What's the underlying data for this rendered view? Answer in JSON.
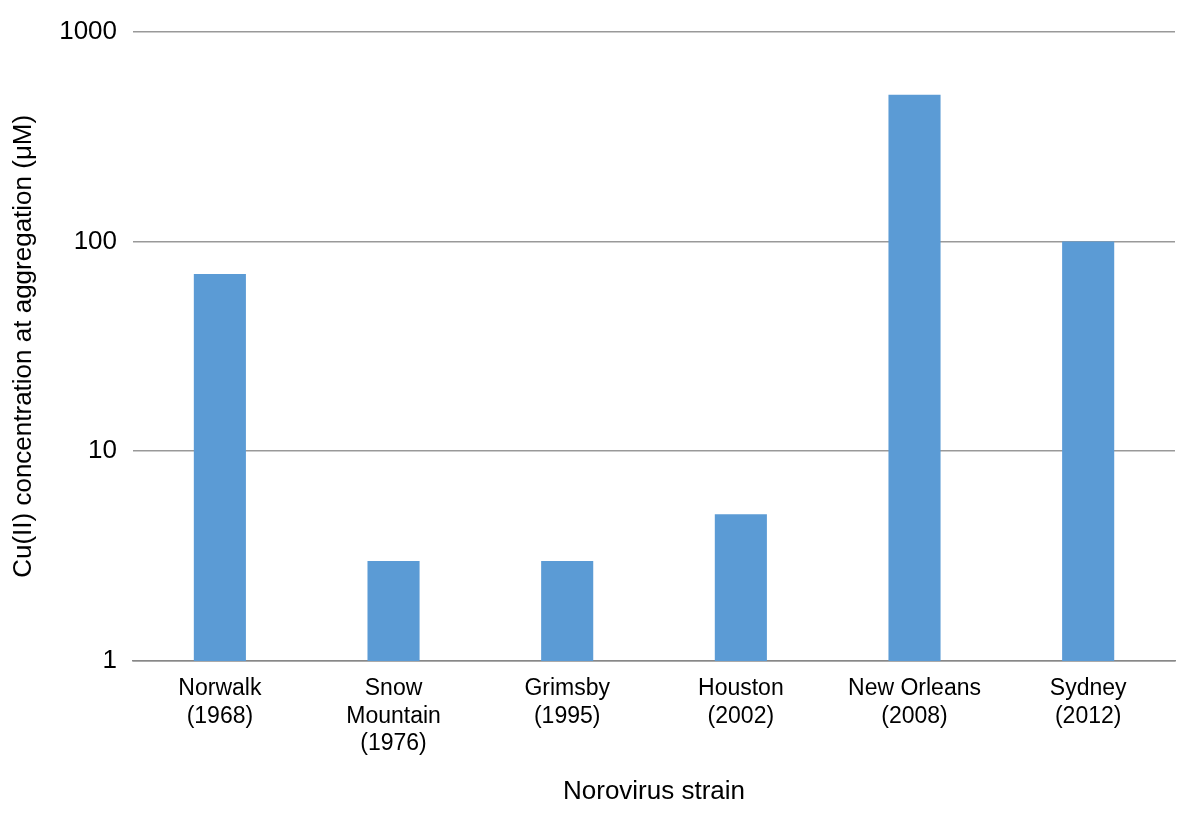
{
  "chart_data": {
    "type": "bar",
    "xlabel": "Norovirus strain",
    "ylabel": "Cu(II) concentration at aggregation (μM)",
    "categories": [
      "Norwalk (1968)",
      "Snow Mountain (1976)",
      "Grimsby (1995)",
      "Houston (2002)",
      "New Orleans (2008)",
      "Sydney (2012)"
    ],
    "values": [
      70,
      3,
      3,
      5,
      500,
      100
    ],
    "color": "#5b9bd5",
    "log": "y",
    "ylim": [
      1,
      1000
    ],
    "yticks": [
      1,
      10,
      100,
      1000
    ],
    "grid": "y",
    "legend": false
  }
}
